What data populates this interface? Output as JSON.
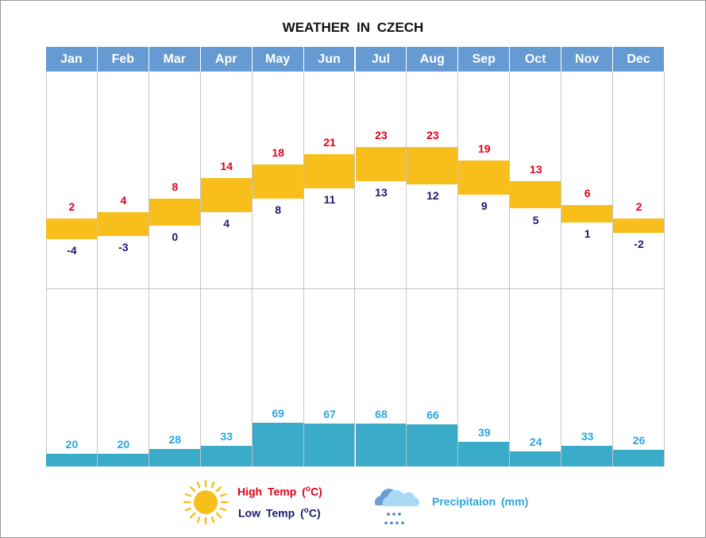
{
  "chart_data": {
    "type": "bar",
    "title": "WEATHER  IN  CZECH",
    "categories": [
      "Jan",
      "Feb",
      "Mar",
      "Apr",
      "May",
      "Jun",
      "Jul",
      "Aug",
      "Sep",
      "Oct",
      "Nov",
      "Dec"
    ],
    "series": [
      {
        "name": "High Temp (°C)",
        "values": [
          2,
          4,
          8,
          14,
          18,
          21,
          23,
          23,
          19,
          13,
          6,
          2
        ]
      },
      {
        "name": "Low Temp (°C)",
        "values": [
          -4,
          -3,
          0,
          4,
          8,
          11,
          13,
          12,
          9,
          5,
          1,
          -2
        ]
      },
      {
        "name": "Precipitaion (mm)",
        "values": [
          20,
          20,
          28,
          33,
          69,
          67,
          68,
          66,
          39,
          24,
          33,
          26
        ]
      }
    ],
    "legend": {
      "high": "High  Temp  (",
      "low": "Low  Temp  (",
      "unit": "o",
      "unit_c": "C)",
      "precip": "Precipitaion  (mm)",
      "placement": "bottom"
    },
    "colors": {
      "header": "#659ad2",
      "temp_bar": "#f8bf1c",
      "precip_bar": "#3aabc8",
      "high": "#e3001b",
      "low": "#1b1a6e",
      "precip": "#2ba6df"
    }
  }
}
